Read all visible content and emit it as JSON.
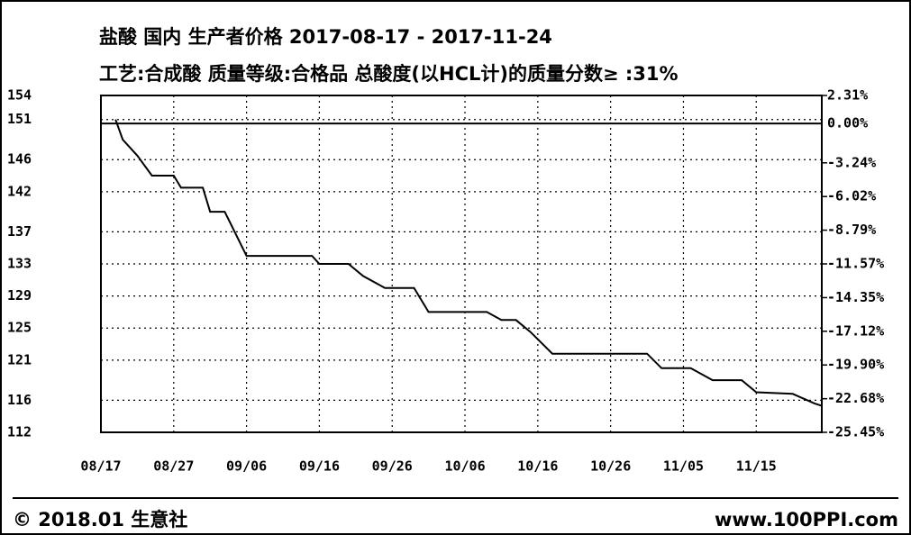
{
  "chart_data": {
    "type": "line",
    "title": "盐酸 国内 生产者价格 2017-08-17 - 2017-11-24",
    "subtitle": "工艺:合成酸 质量等级:合格品 总酸度(以HCL计)的质量分数≥ :31%",
    "x": [
      "08/19",
      "08/20",
      "08/22",
      "08/24",
      "08/27",
      "08/28",
      "08/31",
      "09/01",
      "09/03",
      "09/06",
      "09/15",
      "09/16",
      "09/20",
      "09/22",
      "09/25",
      "09/29",
      "10/01",
      "10/09",
      "10/11",
      "10/13",
      "10/15",
      "10/18",
      "10/31",
      "11/02",
      "11/06",
      "11/09",
      "11/13",
      "11/15",
      "11/20",
      "11/23",
      "11/24"
    ],
    "values": [
      151,
      148.5,
      146.5,
      144,
      144,
      142.5,
      142.5,
      139.5,
      139.5,
      134,
      134,
      133,
      133,
      131.5,
      130,
      130,
      127,
      127,
      126,
      126,
      124.5,
      121.8,
      121.8,
      120,
      120,
      118.5,
      118.5,
      117,
      116.8,
      115.6,
      115.3
    ],
    "color": "#000000",
    "xlim": [
      "08/17",
      "11/24"
    ],
    "xticks": [
      "08/17",
      "08/27",
      "09/06",
      "09/16",
      "09/26",
      "10/06",
      "10/16",
      "10/26",
      "11/05",
      "11/15"
    ],
    "ylim": [
      112,
      154
    ],
    "yticks": [
      154,
      151,
      146,
      142,
      137,
      133,
      129,
      125,
      121,
      116,
      112
    ],
    "y2lim": [
      -25.45,
      2.31
    ],
    "y2ticks": [
      {
        "value": 2.31,
        "label": "2.31%"
      },
      {
        "value": 0,
        "label": "0.00%"
      },
      {
        "value": -3.24,
        "label": "-3.24%"
      },
      {
        "value": -6.02,
        "label": "-6.02%"
      },
      {
        "value": -8.79,
        "label": "-8.79%"
      },
      {
        "value": -11.57,
        "label": "-11.57%"
      },
      {
        "value": -14.35,
        "label": "-14.35%"
      },
      {
        "value": -17.12,
        "label": "-17.12%"
      },
      {
        "value": -19.9,
        "label": "-19.90%"
      },
      {
        "value": -22.68,
        "label": "-22.68%"
      },
      {
        "value": -25.45,
        "label": "-25.45%"
      }
    ],
    "grid": true,
    "copyright": "© 2018.01 生意社",
    "source": "www.100PPI.com"
  }
}
